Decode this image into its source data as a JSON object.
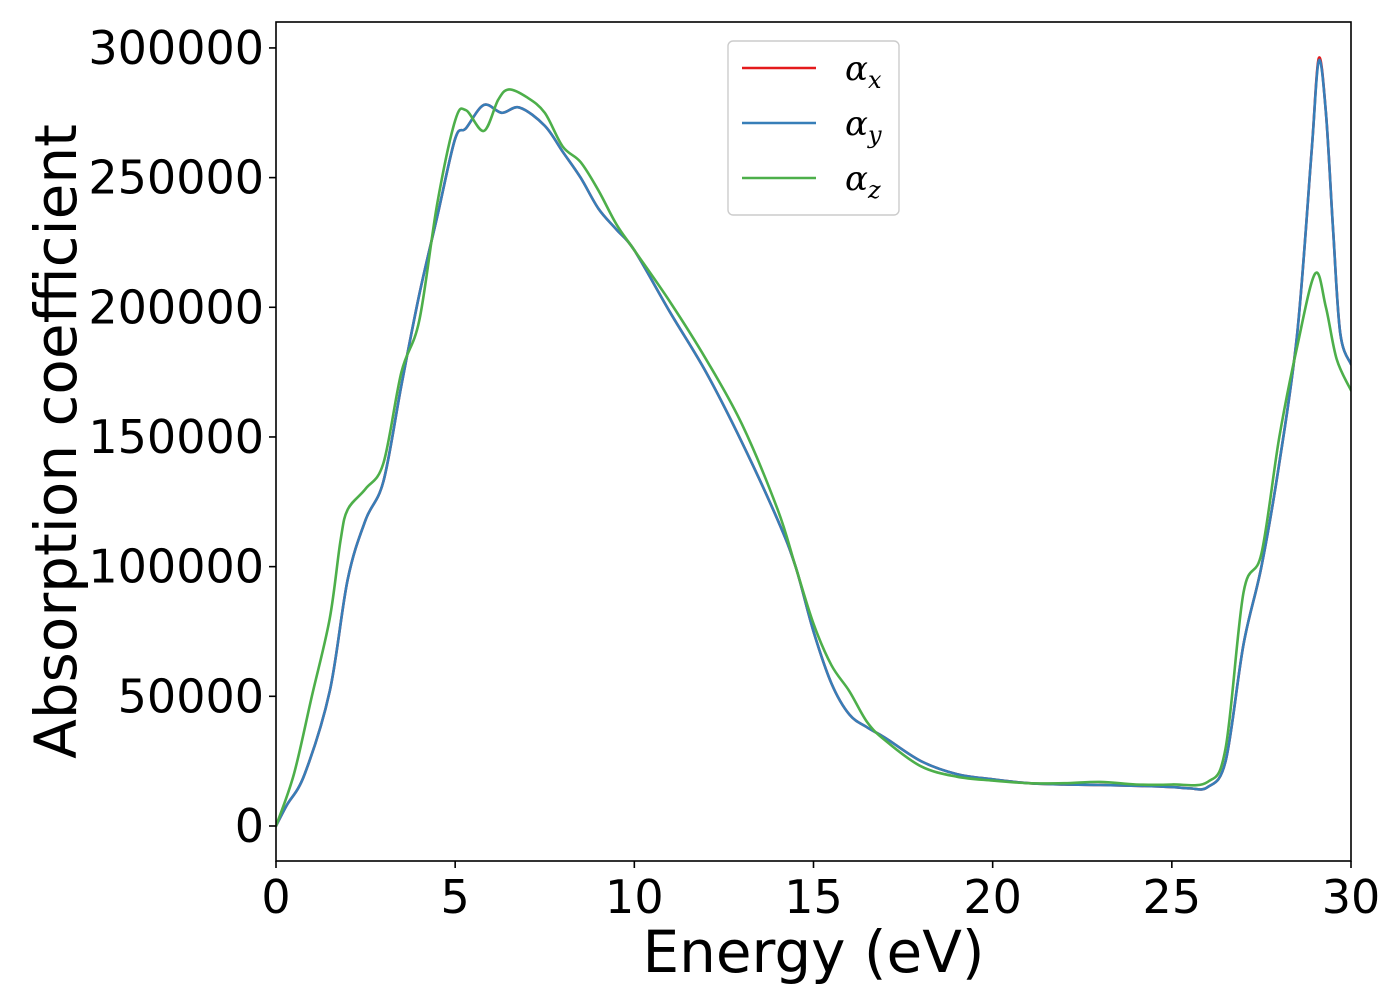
{
  "chart_data": {
    "type": "line",
    "xlabel": "Energy (eV)",
    "ylabel": "Absorption coefficient",
    "xlim": [
      0,
      30
    ],
    "ylim": [
      -13500,
      310000
    ],
    "x_ticks": [
      0,
      5,
      10,
      15,
      20,
      25,
      30
    ],
    "y_ticks": [
      0,
      50000,
      100000,
      150000,
      200000,
      250000,
      300000
    ],
    "x_tick_labels": [
      "0",
      "5",
      "10",
      "15",
      "20",
      "25",
      "30"
    ],
    "y_tick_labels": [
      "0",
      "50000",
      "100000",
      "150000",
      "200000",
      "250000",
      "300000"
    ],
    "grid": false,
    "legend_position": "top-center",
    "series": [
      {
        "name": "α_x",
        "legend_base": "α",
        "legend_sub": "x",
        "color": "#e41a1c",
        "points": [
          [
            0,
            0
          ],
          [
            0.3,
            8000
          ],
          [
            0.8,
            20000
          ],
          [
            1.5,
            52000
          ],
          [
            2,
            95000
          ],
          [
            2.5,
            118000
          ],
          [
            3,
            133000
          ],
          [
            3.5,
            170000
          ],
          [
            4,
            205000
          ],
          [
            4.5,
            235000
          ],
          [
            5,
            265000
          ],
          [
            5.3,
            269000
          ],
          [
            5.8,
            278000
          ],
          [
            6.3,
            275000
          ],
          [
            6.8,
            277000
          ],
          [
            7.5,
            270000
          ],
          [
            8,
            260000
          ],
          [
            8.5,
            250000
          ],
          [
            9,
            238000
          ],
          [
            9.5,
            230000
          ],
          [
            10,
            222000
          ],
          [
            11,
            198000
          ],
          [
            12,
            175000
          ],
          [
            13,
            148000
          ],
          [
            14,
            118000
          ],
          [
            14.5,
            100000
          ],
          [
            15,
            75000
          ],
          [
            15.5,
            55000
          ],
          [
            16,
            43000
          ],
          [
            16.5,
            38000
          ],
          [
            17,
            34000
          ],
          [
            18,
            25000
          ],
          [
            19,
            20000
          ],
          [
            20,
            18000
          ],
          [
            21,
            16500
          ],
          [
            22,
            16000
          ],
          [
            23,
            15800
          ],
          [
            24,
            15500
          ],
          [
            25,
            15000
          ],
          [
            25.5,
            14500
          ],
          [
            26,
            15000
          ],
          [
            26.5,
            25000
          ],
          [
            27,
            70000
          ],
          [
            27.5,
            100000
          ],
          [
            28,
            140000
          ],
          [
            28.5,
            190000
          ],
          [
            28.9,
            260000
          ],
          [
            29.1,
            296000
          ],
          [
            29.3,
            275000
          ],
          [
            29.5,
            230000
          ],
          [
            29.7,
            190000
          ],
          [
            30,
            178000
          ]
        ]
      },
      {
        "name": "α_y",
        "legend_base": "α",
        "legend_sub": "y",
        "color": "#377eb8",
        "points": [
          [
            0,
            0
          ],
          [
            0.3,
            8000
          ],
          [
            0.8,
            20000
          ],
          [
            1.5,
            52000
          ],
          [
            2,
            95000
          ],
          [
            2.5,
            118000
          ],
          [
            3,
            133000
          ],
          [
            3.5,
            170000
          ],
          [
            4,
            205000
          ],
          [
            4.5,
            235000
          ],
          [
            5,
            265000
          ],
          [
            5.3,
            269000
          ],
          [
            5.8,
            278000
          ],
          [
            6.3,
            275000
          ],
          [
            6.8,
            277000
          ],
          [
            7.5,
            270000
          ],
          [
            8,
            260000
          ],
          [
            8.5,
            250000
          ],
          [
            9,
            238000
          ],
          [
            9.5,
            230000
          ],
          [
            10,
            222000
          ],
          [
            11,
            198000
          ],
          [
            12,
            175000
          ],
          [
            13,
            148000
          ],
          [
            14,
            118000
          ],
          [
            14.5,
            100000
          ],
          [
            15,
            75000
          ],
          [
            15.5,
            55000
          ],
          [
            16,
            43000
          ],
          [
            16.5,
            38000
          ],
          [
            17,
            34000
          ],
          [
            18,
            25000
          ],
          [
            19,
            20000
          ],
          [
            20,
            18000
          ],
          [
            21,
            16500
          ],
          [
            22,
            16000
          ],
          [
            23,
            15800
          ],
          [
            24,
            15500
          ],
          [
            25,
            15000
          ],
          [
            25.5,
            14500
          ],
          [
            26,
            15000
          ],
          [
            26.5,
            25000
          ],
          [
            27,
            70000
          ],
          [
            27.5,
            100000
          ],
          [
            28,
            140000
          ],
          [
            28.5,
            190000
          ],
          [
            28.9,
            260000
          ],
          [
            29.1,
            295000
          ],
          [
            29.3,
            275000
          ],
          [
            29.5,
            230000
          ],
          [
            29.7,
            190000
          ],
          [
            30,
            178000
          ]
        ]
      },
      {
        "name": "α_z",
        "legend_base": "α",
        "legend_sub": "z",
        "color": "#4daf4a",
        "points": [
          [
            0,
            0
          ],
          [
            0.5,
            20000
          ],
          [
            1,
            50000
          ],
          [
            1.5,
            80000
          ],
          [
            1.8,
            110000
          ],
          [
            2,
            122000
          ],
          [
            2.5,
            130000
          ],
          [
            3,
            140000
          ],
          [
            3.5,
            175000
          ],
          [
            4,
            195000
          ],
          [
            4.5,
            240000
          ],
          [
            5,
            272000
          ],
          [
            5.3,
            276000
          ],
          [
            5.8,
            268000
          ],
          [
            6.2,
            280000
          ],
          [
            6.5,
            284000
          ],
          [
            7,
            281000
          ],
          [
            7.5,
            275000
          ],
          [
            8,
            262000
          ],
          [
            8.5,
            256000
          ],
          [
            9,
            245000
          ],
          [
            9.5,
            232000
          ],
          [
            10,
            222000
          ],
          [
            11,
            202000
          ],
          [
            12,
            180000
          ],
          [
            13,
            155000
          ],
          [
            14,
            122000
          ],
          [
            14.5,
            100000
          ],
          [
            15,
            78000
          ],
          [
            15.5,
            62000
          ],
          [
            16,
            52000
          ],
          [
            16.5,
            40000
          ],
          [
            17,
            33000
          ],
          [
            18,
            23000
          ],
          [
            19,
            19000
          ],
          [
            20,
            17500
          ],
          [
            21,
            16500
          ],
          [
            22,
            16500
          ],
          [
            23,
            17000
          ],
          [
            24,
            16000
          ],
          [
            25,
            16000
          ],
          [
            26,
            17000
          ],
          [
            26.5,
            30000
          ],
          [
            27,
            90000
          ],
          [
            27.5,
            105000
          ],
          [
            28,
            150000
          ],
          [
            28.5,
            185000
          ],
          [
            29,
            213000
          ],
          [
            29.3,
            200000
          ],
          [
            29.6,
            180000
          ],
          [
            30,
            168000
          ]
        ]
      }
    ]
  }
}
